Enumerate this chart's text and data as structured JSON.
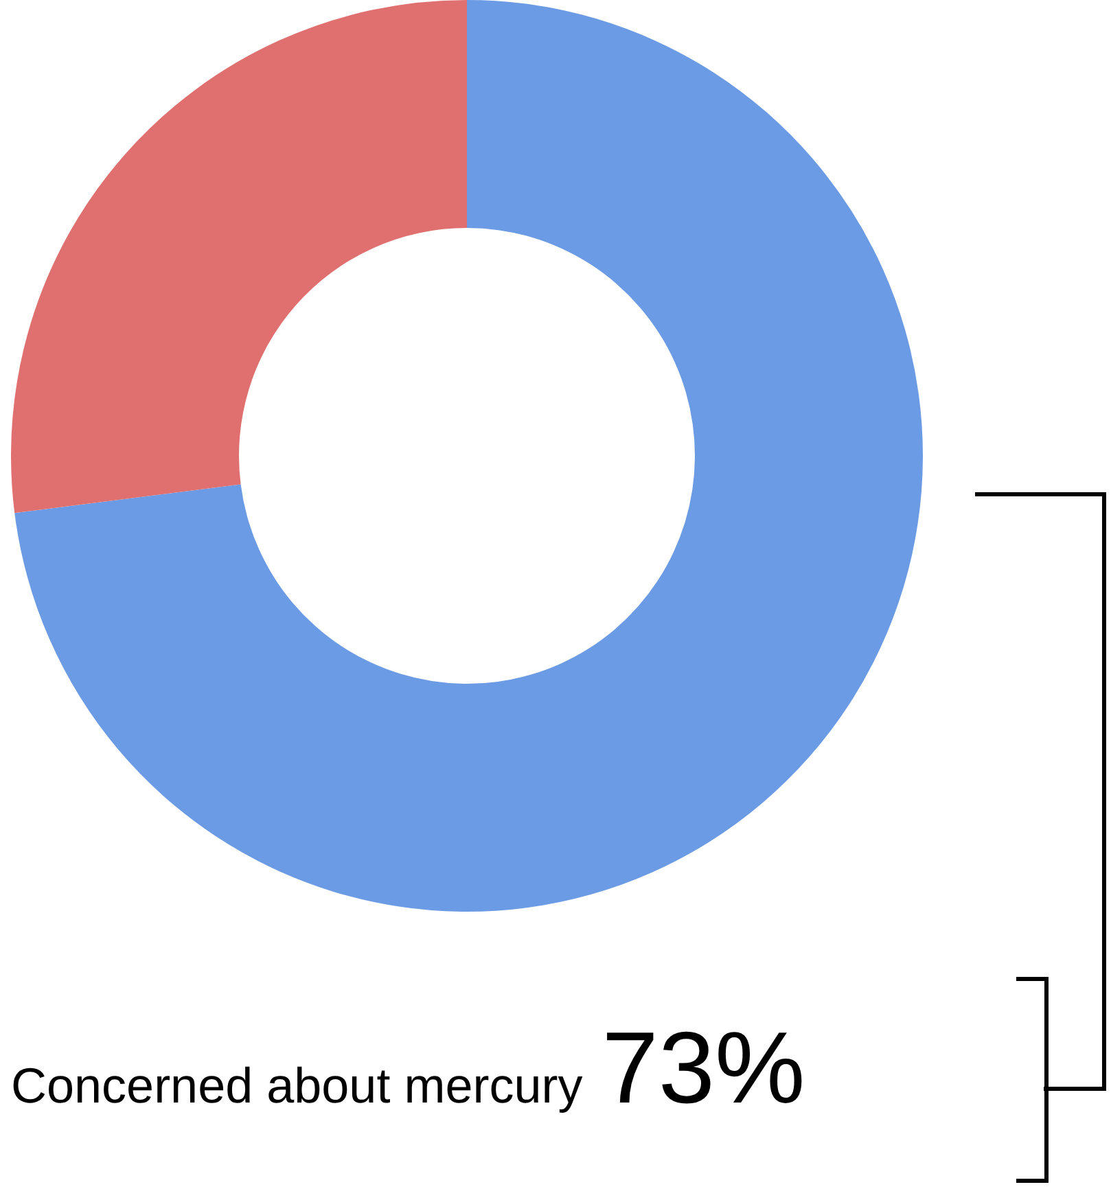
{
  "chart_data": {
    "type": "donut",
    "categories": [
      "Concerned about mercury",
      null
    ],
    "values": [
      73,
      27
    ],
    "colors": [
      "#6a9be4",
      "#e07070"
    ],
    "value_labels": [
      "73%",
      null
    ],
    "legend": false
  }
}
